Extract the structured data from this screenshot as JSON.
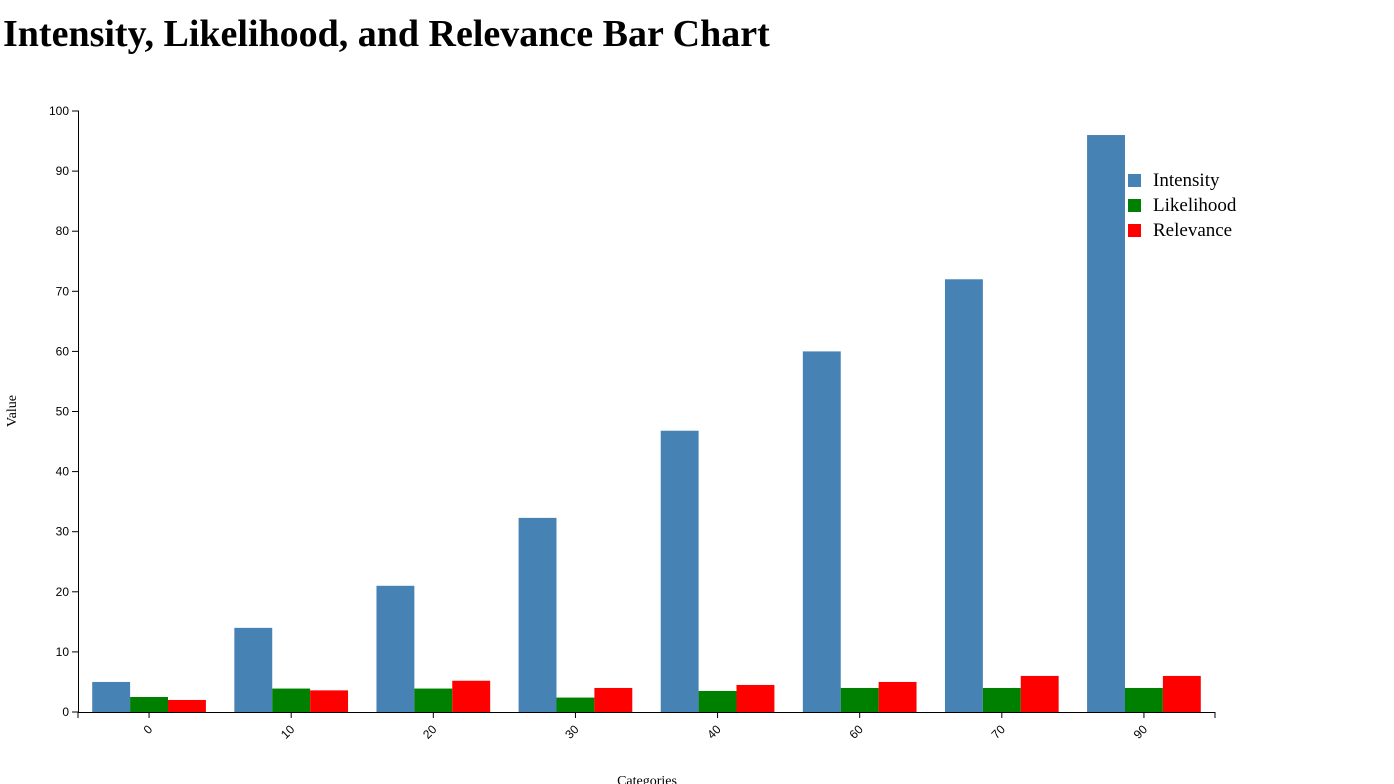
{
  "chart_data": {
    "type": "bar",
    "title": "Intensity, Likelihood, and Relevance Bar Chart",
    "xlabel": "Categories",
    "ylabel": "Value",
    "categories": [
      "0",
      "10",
      "20",
      "30",
      "40",
      "60",
      "70",
      "90"
    ],
    "series": [
      {
        "name": "Intensity",
        "color": "#4682b4",
        "values": [
          5,
          14,
          21,
          32.3,
          46.8,
          60,
          72,
          96
        ]
      },
      {
        "name": "Likelihood",
        "color": "#008000",
        "values": [
          2.5,
          3.9,
          3.9,
          2.4,
          3.5,
          4,
          4,
          4
        ]
      },
      {
        "name": "Relevance",
        "color": "#ff0000",
        "values": [
          2,
          3.6,
          5.2,
          4,
          4.5,
          5,
          6,
          6
        ]
      }
    ],
    "ylim": [
      0,
      100
    ],
    "yticks": [
      0,
      10,
      20,
      30,
      40,
      50,
      60,
      70,
      80,
      90,
      100
    ],
    "grid": false,
    "legend_position": "top-right",
    "x_tick_rotation": "-45deg"
  }
}
